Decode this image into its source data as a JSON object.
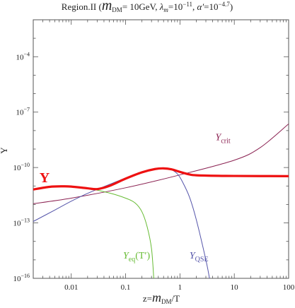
{
  "chart_data": {
    "type": "line",
    "title_parts": {
      "prefix": "Region.II (",
      "m": "m",
      "dm_sub": "DM",
      "mass": "= 10GeV, ",
      "lambda": "λ",
      "lambda_sub": "m",
      "lambda_val": "=10",
      "lambda_exp": "−11",
      "sep": ", ",
      "alpha": "α′",
      "alpha_val": "=10",
      "alpha_exp": "−4.7",
      "suffix": ")"
    },
    "xlabel_parts": {
      "lead": "z=",
      "m": "m",
      "sub": "DM",
      "tail": "/T"
    },
    "ylabel": "Y",
    "x_scale": "log",
    "y_scale": "log",
    "xlim": [
      0.002,
      100
    ],
    "ylim": [
      1e-16,
      0.01
    ],
    "x_ticks": [
      {
        "value": 0.01,
        "label": "0.01"
      },
      {
        "value": 0.1,
        "label": "0.1"
      },
      {
        "value": 1,
        "label": "1"
      },
      {
        "value": 10,
        "label": "10"
      },
      {
        "value": 100,
        "label": "100"
      }
    ],
    "y_ticks": [
      {
        "value": 1e-16,
        "base": "10",
        "exp": "−16"
      },
      {
        "value": 1e-13,
        "base": "10",
        "exp": "−13"
      },
      {
        "value": 1e-10,
        "base": "10",
        "exp": "−10"
      },
      {
        "value": 1e-07,
        "base": "10",
        "exp": "−7"
      },
      {
        "value": 0.0001,
        "base": "10",
        "exp": "−4"
      }
    ],
    "series": [
      {
        "name": "Y_crit",
        "label_main": "Y",
        "label_sub": "crit",
        "color": "#8b2252",
        "width": 1,
        "label_at": [
          4.5,
          3e-09
        ],
        "points": [
          [
            0.002,
            1.1e-12
          ],
          [
            0.01,
            2.2e-12
          ],
          [
            0.1,
            8e-12
          ],
          [
            1,
            4e-11
          ],
          [
            10,
            2.5e-10
          ],
          [
            30,
            1.2e-09
          ],
          [
            100,
            2.3e-08
          ]
        ]
      },
      {
        "name": "Y_QSE",
        "label_main": "Y",
        "label_sub": "QSE",
        "color": "#5555aa",
        "width": 1,
        "label_at": [
          1.5,
          1.2e-15
        ],
        "points": [
          [
            0.002,
            1.2e-13
          ],
          [
            0.005,
            5e-13
          ],
          [
            0.01,
            1.5e-12
          ],
          [
            0.02,
            4e-12
          ],
          [
            0.05,
            1.2e-11
          ],
          [
            0.1,
            2.7e-11
          ],
          [
            0.2,
            5.5e-11
          ],
          [
            0.35,
            8e-11
          ],
          [
            0.5,
            8.8e-11
          ],
          [
            0.7,
            7.5e-11
          ],
          [
            0.9,
            4.5e-11
          ],
          [
            1.1,
            1.8e-11
          ],
          [
            1.5,
            2.5e-12
          ],
          [
            2,
            1.5e-13
          ],
          [
            3,
            1e-15
          ],
          [
            3.5,
            1e-16
          ]
        ]
      },
      {
        "name": "Y_eq(T')",
        "label_main": "Y",
        "label_sub": "eq",
        "label_tail": "(T′)",
        "color": "#66bb33",
        "width": 1,
        "label_at": [
          0.09,
          1.2e-15
        ],
        "points": [
          [
            0.002,
            6.5e-12
          ],
          [
            0.004,
            9e-12
          ],
          [
            0.007,
            9.6e-12
          ],
          [
            0.01,
            9.3e-12
          ],
          [
            0.02,
            7.5e-12
          ],
          [
            0.05,
            4.2e-12
          ],
          [
            0.1,
            2.2e-12
          ],
          [
            0.15,
            1.2e-12
          ],
          [
            0.2,
            4e-13
          ],
          [
            0.25,
            6e-14
          ],
          [
            0.3,
            4e-15
          ],
          [
            0.33,
            1e-16
          ]
        ]
      },
      {
        "name": "Y",
        "label_main": "Y",
        "color": "#ee1111",
        "width": 3.2,
        "label_at": [
          0.0026,
          1.6e-11
        ],
        "points": [
          [
            0.002,
            6.5e-12
          ],
          [
            0.004,
            9e-12
          ],
          [
            0.007,
            9.6e-12
          ],
          [
            0.01,
            9.3e-12
          ],
          [
            0.02,
            7.5e-12
          ],
          [
            0.03,
            6.8e-12
          ],
          [
            0.05,
            1e-11
          ],
          [
            0.1,
            2.5e-11
          ],
          [
            0.2,
            5.5e-11
          ],
          [
            0.35,
            8.3e-11
          ],
          [
            0.5,
            9e-11
          ],
          [
            0.7,
            8e-11
          ],
          [
            1,
            5.8e-11
          ],
          [
            1.5,
            4.2e-11
          ],
          [
            2,
            3.8e-11
          ],
          [
            5,
            3.55e-11
          ],
          [
            10,
            3.5e-11
          ],
          [
            100,
            3.4e-11
          ]
        ]
      }
    ]
  }
}
